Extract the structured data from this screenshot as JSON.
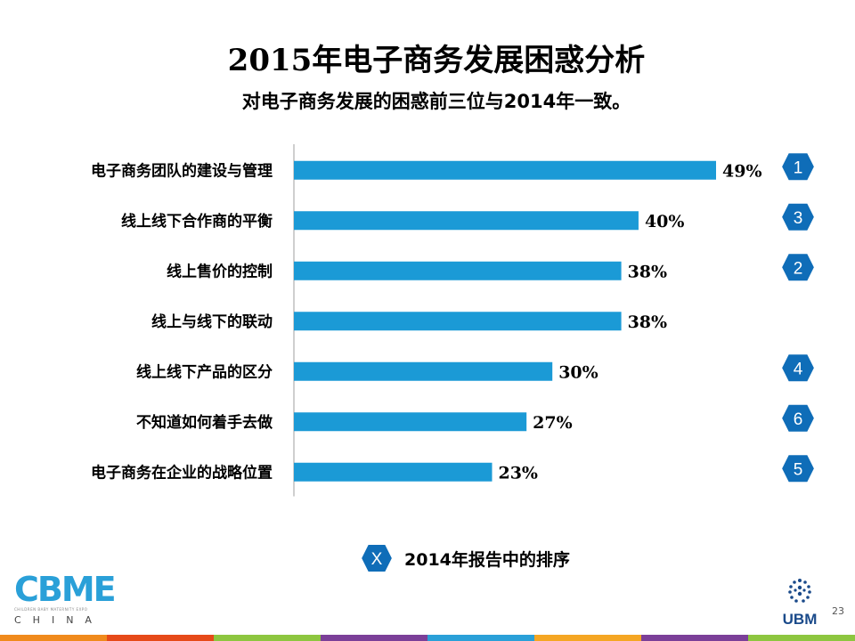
{
  "slide": {
    "title": "2015年电子商务发展困惑分析",
    "subtitle": "对电子商务发展的困惑前三位与2014年一致。",
    "page_number": "23"
  },
  "chart_data": {
    "type": "bar",
    "orientation": "horizontal",
    "categories": [
      "电子商务团队的建设与管理",
      "线上线下合作商的平衡",
      "线上售价的控制",
      "线上与线下的联动",
      "线上线下产品的区分",
      "不知道如何着手去做",
      "电子商务在企业的战略位置"
    ],
    "values": [
      49,
      40,
      38,
      38,
      30,
      27,
      23
    ],
    "value_labels": [
      "49%",
      "40%",
      "38%",
      "38%",
      "30%",
      "27%",
      "23%"
    ],
    "unit": "%",
    "ranks_2014": [
      "1",
      "3",
      "2",
      "",
      "4",
      "6",
      "5"
    ],
    "bar_color": "#1b9ad6",
    "xlim": [
      0,
      49
    ],
    "grid": false,
    "legend_position": "bottom"
  },
  "legend": {
    "badge_label": "X",
    "text": "2014年报告中的排序"
  },
  "logos": {
    "cbme_letters": "CBME",
    "cbme_tagline": "CHILDREN BABY MATERNITY EXPO",
    "cbme_sub": "CHINA",
    "ubm_text": "UBM"
  },
  "colors": {
    "badge_fill": "#0f6db8",
    "badge_border": "#ffffff",
    "axis": "#bfbfbf",
    "footer_stripes": [
      "#f08a1c",
      "#e64a19",
      "#8dc63f",
      "#7b3f98",
      "#2aa0d8",
      "#f5a623",
      "#7b3f98",
      "#8dc63f"
    ]
  }
}
